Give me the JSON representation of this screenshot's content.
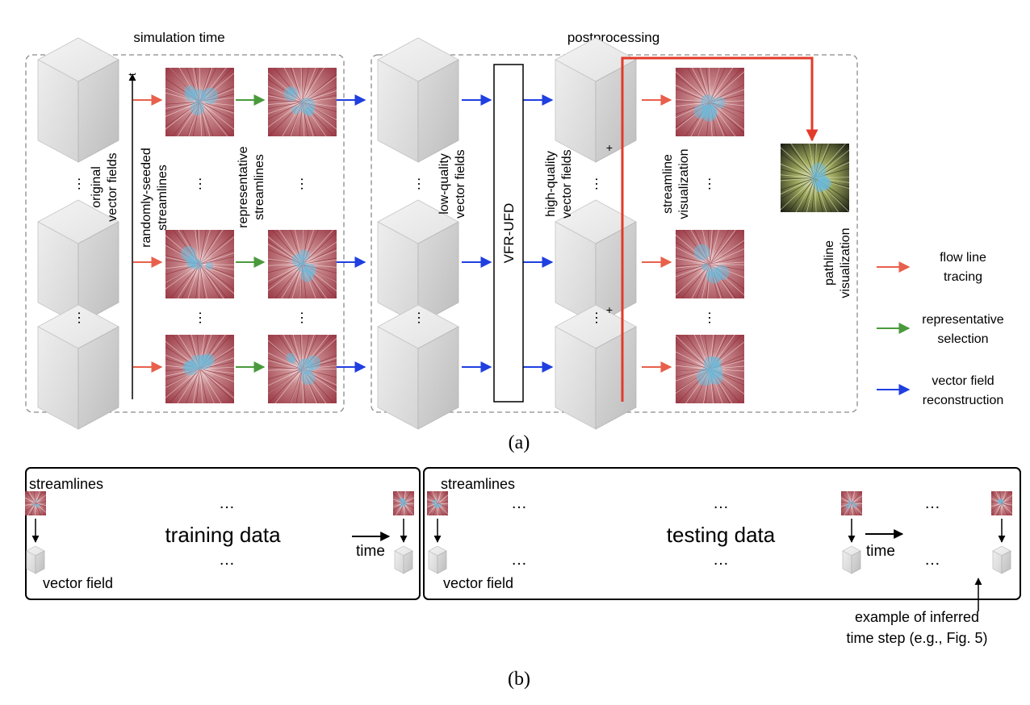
{
  "panel_a": {
    "left_group_title": "simulation time",
    "right_group_title": "postprocessing",
    "time_axis_label": "t",
    "labels": {
      "original_1": "original",
      "original_2": "vector fields",
      "random_1": "randomly-seeded",
      "random_2": "streamlines",
      "repr_1": "representative",
      "repr_2": "streamlines",
      "low_1": "low-quality",
      "low_2": "vector fields",
      "network": "VFR-UFD",
      "high_1": "high-quality",
      "high_2": "vector fields",
      "svis_1": "streamline",
      "svis_2": "visualization",
      "pvis_1": "pathline",
      "pvis_2": "visualization"
    },
    "ellipsis": "…",
    "plus": "+",
    "caption": "(a)"
  },
  "legend": [
    {
      "line1": "flow line",
      "line2": "tracing",
      "color": "#e8604c"
    },
    {
      "line1": "representative",
      "line2": "selection",
      "color": "#4a9a3c"
    },
    {
      "line1": "vector field",
      "line2": "reconstruction",
      "color": "#1f3fe0"
    }
  ],
  "panel_b": {
    "streamlines_label": "streamlines",
    "vector_field_label": "vector field",
    "training_label": "training data",
    "testing_label": "testing data",
    "time_label": "time",
    "dots": "…",
    "inferred_1": "example of inferred",
    "inferred_2": "time step (e.g., Fig. 5)",
    "caption": "(b)"
  },
  "colors": {
    "tracing": "#e8604c",
    "selection": "#4a9a3c",
    "reconstruction": "#1f3fe0",
    "pathline_feed": "#e23b2a",
    "streamline_field": "#a8454e",
    "seed_blue": "#6ab8d8"
  }
}
